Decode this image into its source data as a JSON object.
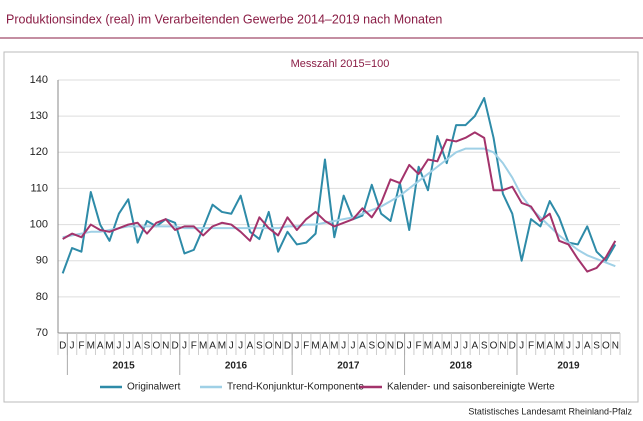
{
  "chart_data": {
    "type": "line",
    "title": "Produktionsindex (real) im Verarbeitenden Gewerbe 2014–2019 nach Monaten",
    "subtitle": "Messzahl 2015=100",
    "source": "Statistisches Landesamt Rheinland-Pfalz",
    "categories": [
      "D",
      "J",
      "F",
      "M",
      "A",
      "M",
      "J",
      "J",
      "A",
      "S",
      "O",
      "N",
      "D",
      "J",
      "F",
      "M",
      "A",
      "M",
      "J",
      "J",
      "A",
      "S",
      "O",
      "N",
      "D",
      "J",
      "F",
      "M",
      "A",
      "M",
      "J",
      "J",
      "A",
      "S",
      "O",
      "N",
      "D",
      "J",
      "F",
      "M",
      "A",
      "M",
      "J",
      "J",
      "A",
      "S",
      "O",
      "N",
      "D",
      "J",
      "F",
      "M",
      "A",
      "M",
      "J",
      "J",
      "A",
      "S",
      "O",
      "N"
    ],
    "years": [
      "2015",
      "2016",
      "2017",
      "2018",
      "2019"
    ],
    "ylim": [
      70,
      140
    ],
    "yticks": [
      70,
      80,
      90,
      100,
      110,
      120,
      130,
      140
    ],
    "grid": true,
    "legend": "bottom",
    "series": [
      {
        "name": "Originalwert",
        "color": "#2e8ba8",
        "values": [
          86.5,
          93.5,
          92.5,
          109,
          100,
          95.5,
          103,
          107,
          95,
          101,
          99.5,
          101.5,
          100.5,
          92,
          93,
          99,
          105.5,
          103.5,
          103,
          108,
          98,
          96,
          103.5,
          92.5,
          98,
          94.5,
          95,
          97.5,
          118,
          96.5,
          108,
          101.5,
          102.5,
          111,
          103,
          101,
          111.5,
          98.5,
          116,
          109.5,
          124.5,
          117,
          127.5,
          127.5,
          130,
          135,
          124,
          108.5,
          103,
          90,
          101.5,
          99.5,
          106.5,
          102,
          95,
          94.5,
          99.5,
          92.5,
          90,
          94.5
        ]
      },
      {
        "name": "Trend-Konjunktur-Komponente",
        "color": "#9fd0e6",
        "values": [
          96.5,
          97,
          97.5,
          98,
          98,
          98.5,
          99,
          99.5,
          99.5,
          99.5,
          99.5,
          99.5,
          99.5,
          99,
          99,
          99,
          99,
          99,
          99,
          99,
          99,
          99,
          99,
          99,
          99.5,
          99.5,
          100,
          100,
          100.5,
          101,
          101.5,
          102,
          103,
          104,
          105,
          106.5,
          108,
          110,
          112,
          114,
          116,
          118,
          120,
          121,
          121,
          121,
          120,
          117,
          113,
          108,
          104.5,
          102,
          99.5,
          97,
          95,
          93,
          91.5,
          90.5,
          89.5,
          88.5
        ]
      },
      {
        "name": "Kalender- und saisonbereinigte Werte",
        "color": "#a3336b",
        "values": [
          96,
          97.5,
          96.5,
          100,
          98.5,
          98,
          99,
          100,
          100.5,
          97.5,
          100.5,
          101.5,
          98.5,
          99.5,
          99.5,
          97,
          99.5,
          100.5,
          100,
          98,
          95.5,
          102,
          99,
          97,
          102,
          98.5,
          101.5,
          103.5,
          101,
          99.5,
          100.5,
          101.5,
          104.5,
          102,
          106,
          112.5,
          111.5,
          116.5,
          114,
          118,
          117.5,
          123.5,
          123,
          124,
          125.5,
          124,
          109.5,
          109.5,
          110.5,
          106,
          105,
          101,
          103,
          95.5,
          94.5,
          90.5,
          87,
          88,
          91,
          95.5
        ]
      }
    ]
  }
}
